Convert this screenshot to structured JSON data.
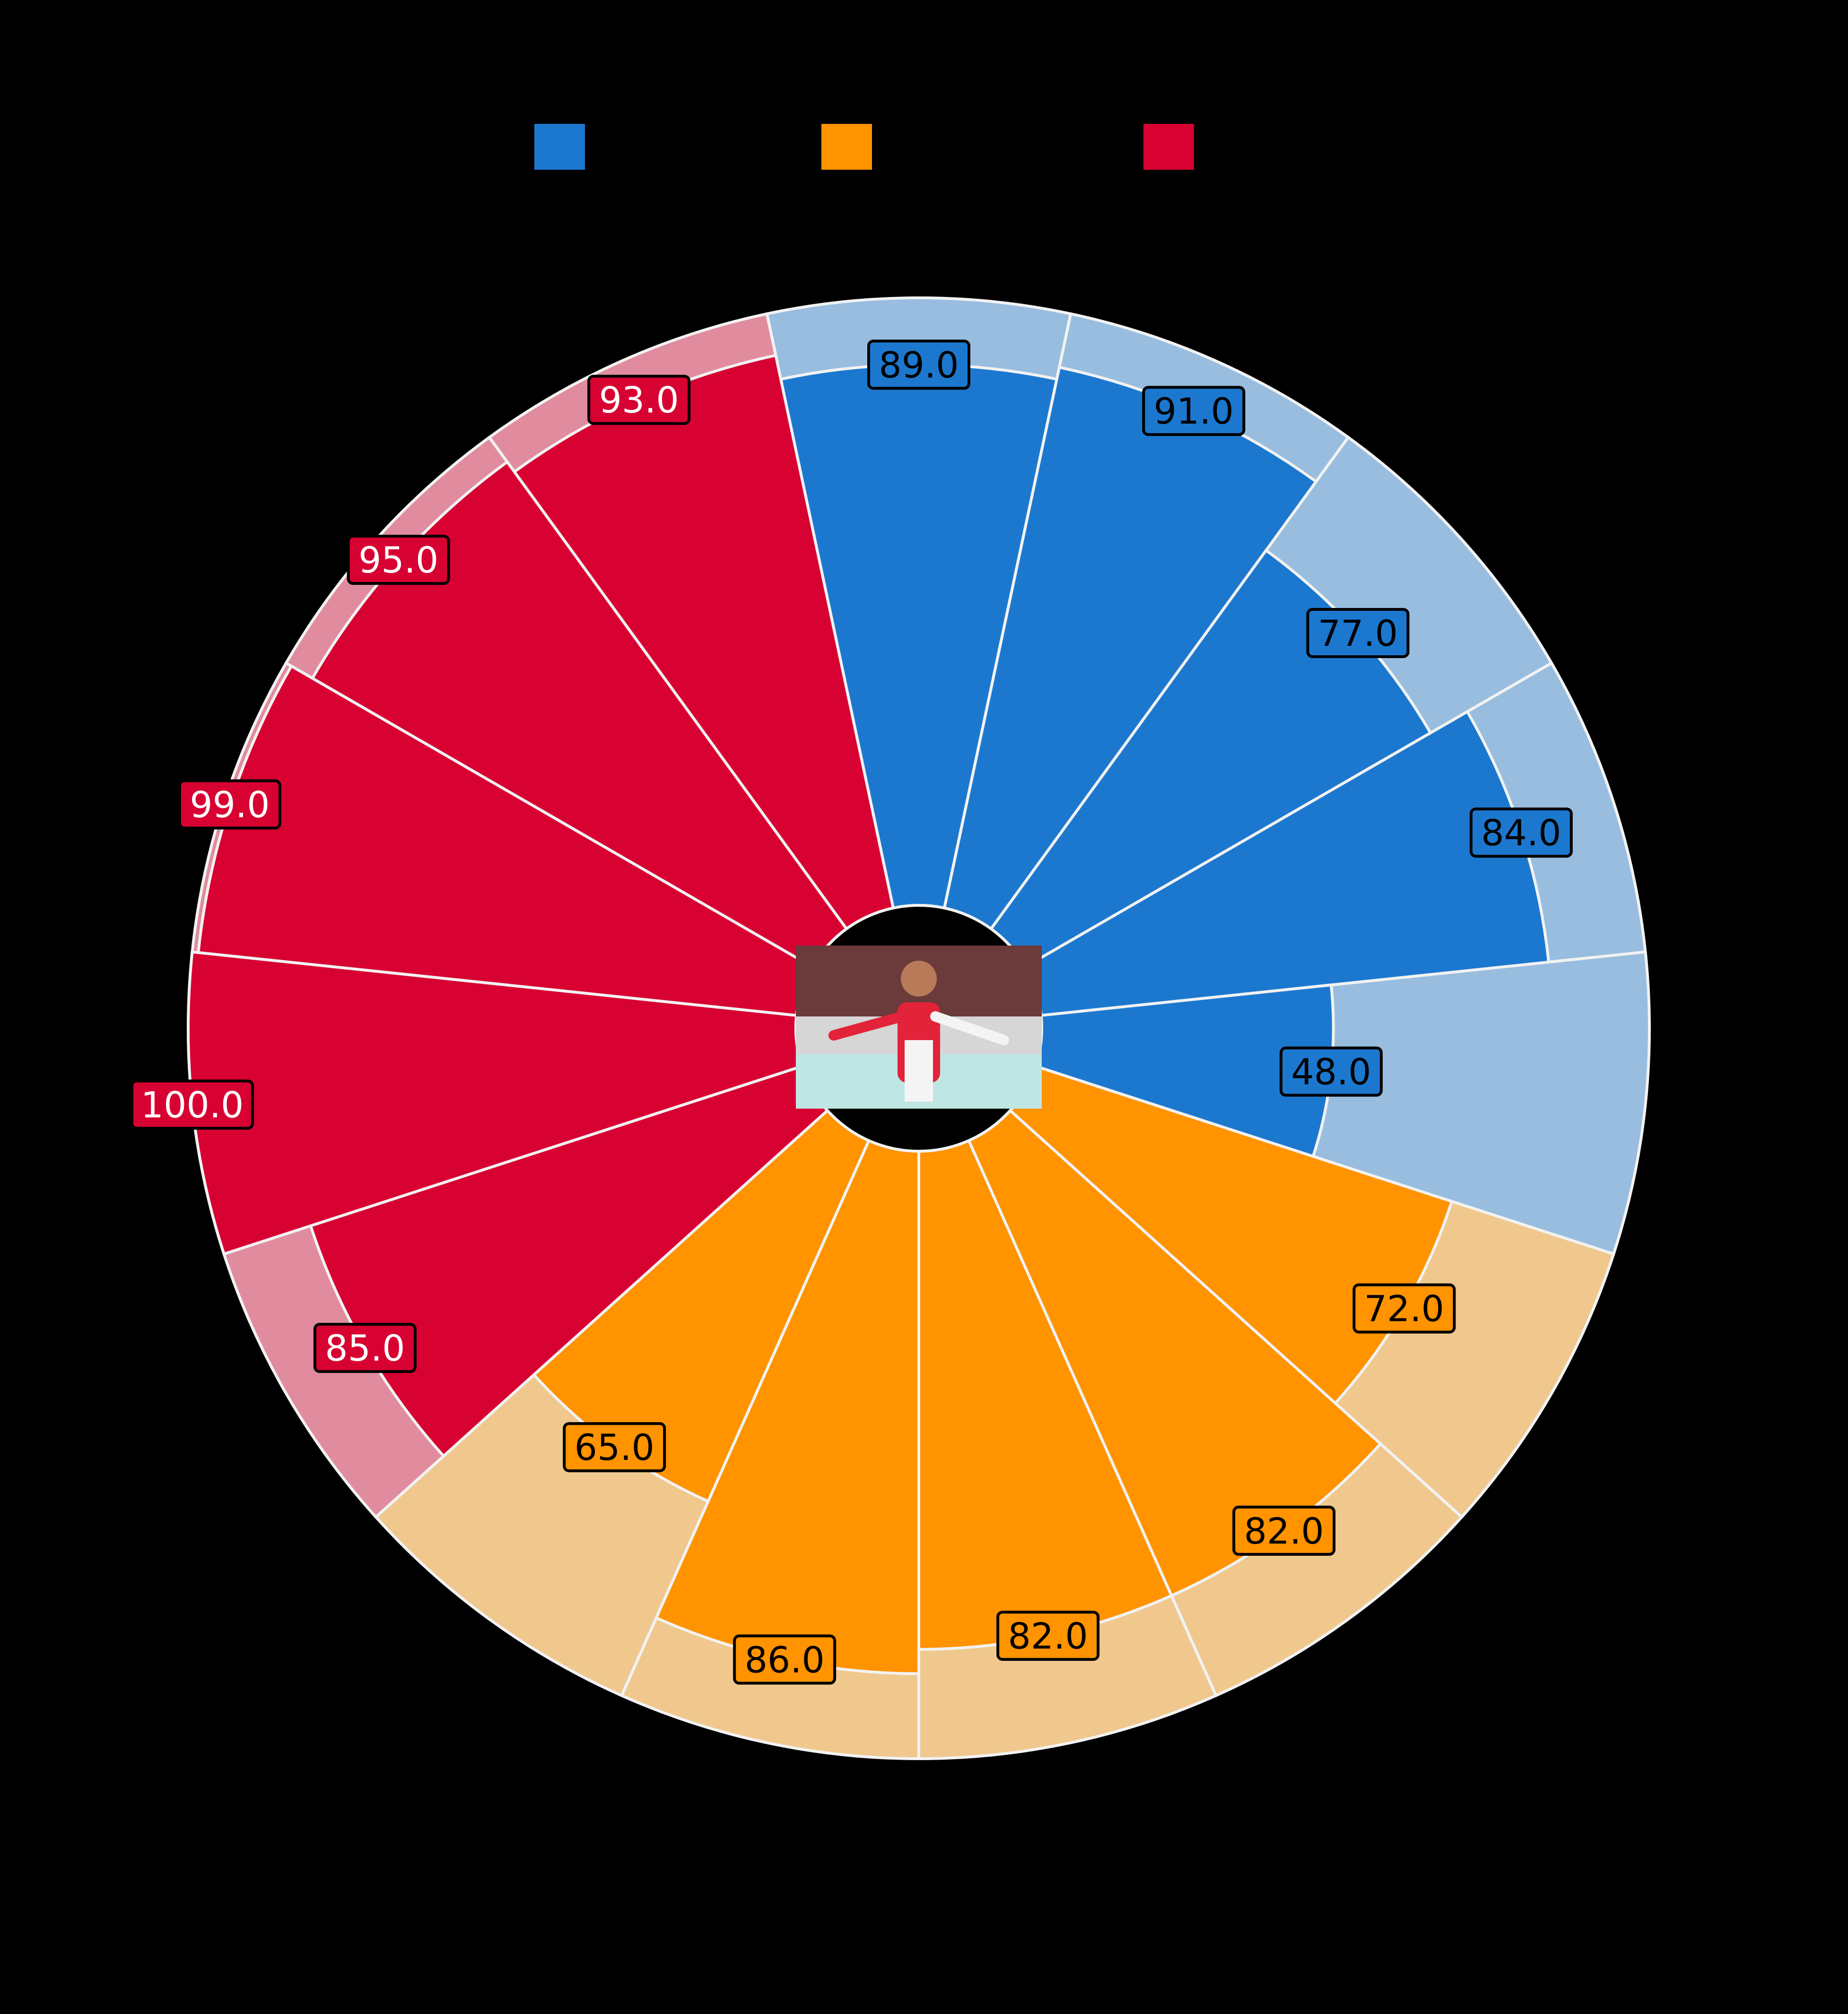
{
  "chart_data": {
    "type": "pizza",
    "background": "#000000",
    "legend": {
      "placement": "top-center",
      "entries": [
        {
          "color": "#1c78cf",
          "label": ""
        },
        {
          "color": "#ff9300",
          "label": ""
        },
        {
          "color": "#d70232",
          "label": ""
        }
      ]
    },
    "range": [
      0,
      100
    ],
    "center_image": "player-photo",
    "slices": [
      {
        "value": 89,
        "label": "89.0",
        "group": 0
      },
      {
        "value": 91,
        "label": "91.0",
        "group": 0
      },
      {
        "value": 77,
        "label": "77.0",
        "group": 0
      },
      {
        "value": 84,
        "label": "84.0",
        "group": 0
      },
      {
        "value": 48,
        "label": "48.0",
        "group": 0
      },
      {
        "value": 72,
        "label": "72.0",
        "group": 1
      },
      {
        "value": 82,
        "label": "82.0",
        "group": 1
      },
      {
        "value": 82,
        "label": "82.0",
        "group": 1
      },
      {
        "value": 86,
        "label": "86.0",
        "group": 1
      },
      {
        "value": 65,
        "label": "65.0",
        "group": 1
      },
      {
        "value": 85,
        "label": "85.0",
        "group": 2
      },
      {
        "value": 100,
        "label": "100.0",
        "group": 2
      },
      {
        "value": 99,
        "label": "99.0",
        "group": 2
      },
      {
        "value": 95,
        "label": "95.0",
        "group": 2
      },
      {
        "value": 93,
        "label": "93.0",
        "group": 2
      }
    ],
    "groups": [
      {
        "color": "#1c78cf",
        "bg_color": "#98bddf",
        "label_text_color": "#000000"
      },
      {
        "color": "#ff9300",
        "bg_color": "#f0c88e",
        "label_text_color": "#000000"
      },
      {
        "color": "#d70232",
        "bg_color": "#e08c9e",
        "label_text_color": "#ffffff"
      }
    ]
  }
}
